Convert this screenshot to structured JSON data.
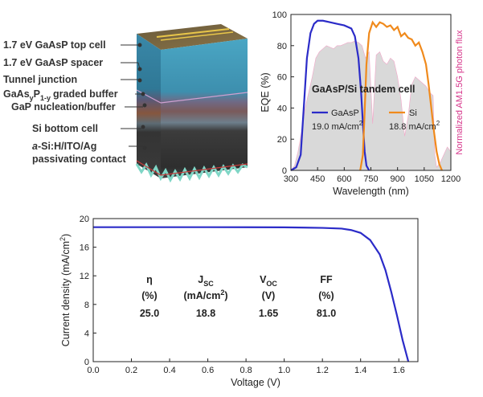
{
  "device": {
    "labels": [
      "1.7 eV GaAsP top cell",
      "1.7 eV GaAsP spacer",
      "Tunnel junction",
      "GaAs",
      "P",
      "graded buffer",
      "GaP nucleation/buffer",
      "Si bottom cell",
      "a",
      "-Si:H/ITO/Ag",
      "passivating contact"
    ],
    "subscripts": [
      "y",
      "1-y"
    ]
  },
  "chart_data": [
    {
      "type": "line",
      "title": "GaAsP/Si tandem cell",
      "xlabel": "Wavelength (nm)",
      "ylabel": "EQE (%)",
      "y2label": "Normalized AM1.5G photon flux",
      "xlim": [
        300,
        1200
      ],
      "ylim": [
        0,
        100
      ],
      "xticks": [
        "300",
        "450",
        "600",
        "750",
        "900",
        "1050",
        "1200"
      ],
      "yticks": [
        "0",
        "20",
        "40",
        "60",
        "80",
        "100"
      ],
      "series": [
        {
          "name": "GaAsP",
          "color": "#2b2bc8",
          "annotation": "19.0 mA/cm",
          "annotation_sup": "2",
          "x": [
            300,
            330,
            355,
            375,
            390,
            410,
            430,
            450,
            480,
            520,
            560,
            600,
            640,
            660,
            680,
            695,
            705,
            715,
            725,
            740
          ],
          "y": [
            0,
            2,
            10,
            45,
            72,
            88,
            94,
            96,
            96,
            95,
            94,
            93,
            91,
            86,
            72,
            50,
            30,
            12,
            3,
            0
          ]
        },
        {
          "name": "Si",
          "color": "#f08a1c",
          "annotation": "18.8 mA/cm",
          "annotation_sup": "2",
          "x": [
            690,
            705,
            715,
            725,
            740,
            760,
            780,
            800,
            820,
            840,
            860,
            880,
            900,
            920,
            940,
            960,
            980,
            1000,
            1020,
            1040,
            1060,
            1075,
            1090,
            1105,
            1120,
            1135,
            1150
          ],
          "y": [
            0,
            10,
            38,
            68,
            88,
            95,
            92,
            95,
            94,
            92,
            93,
            90,
            92,
            86,
            88,
            85,
            84,
            80,
            82,
            76,
            68,
            55,
            40,
            25,
            12,
            4,
            0
          ]
        }
      ],
      "photon_flux": {
        "color": "#d9d9d9",
        "x": [
          300,
          320,
          340,
          360,
          380,
          400,
          420,
          440,
          460,
          480,
          500,
          520,
          540,
          560,
          580,
          600,
          620,
          640,
          660,
          680,
          700,
          720,
          740,
          760,
          780,
          800,
          820,
          840,
          860,
          880,
          900,
          920,
          940,
          960,
          980,
          1000,
          1020,
          1040,
          1060,
          1080,
          1100,
          1110,
          1120,
          1140,
          1160,
          1180,
          1200
        ],
        "y": [
          0,
          3,
          12,
          25,
          40,
          50,
          60,
          72,
          76,
          78,
          80,
          79,
          78,
          80,
          80,
          81,
          82,
          82,
          83,
          82,
          80,
          72,
          76,
          30,
          74,
          76,
          70,
          68,
          72,
          70,
          60,
          45,
          22,
          35,
          55,
          60,
          58,
          56,
          54,
          50,
          48,
          10,
          2,
          5,
          10,
          15,
          12
        ]
      }
    },
    {
      "type": "line",
      "title": "",
      "xlabel": "Voltage (V)",
      "ylabel": "Current density (mA/cm",
      "ylabel_sup": "2",
      "ylabel_end": ")",
      "xlim": [
        0,
        1.7
      ],
      "ylim": [
        0,
        20
      ],
      "xticks": [
        "0.0",
        "0.2",
        "0.4",
        "0.6",
        "0.8",
        "1.0",
        "1.2",
        "1.4",
        "1.6"
      ],
      "yticks": [
        "0",
        "4",
        "8",
        "12",
        "16",
        "20"
      ],
      "series": [
        {
          "name": "J-V",
          "color": "#2b2bc8",
          "x": [
            0.0,
            0.2,
            0.4,
            0.6,
            0.8,
            1.0,
            1.2,
            1.3,
            1.35,
            1.4,
            1.45,
            1.5,
            1.53,
            1.56,
            1.59,
            1.62,
            1.64,
            1.65
          ],
          "y": [
            18.8,
            18.8,
            18.8,
            18.8,
            18.79,
            18.78,
            18.7,
            18.6,
            18.4,
            18.0,
            17.0,
            15.0,
            12.8,
            9.8,
            6.5,
            3.0,
            1.0,
            0.0
          ]
        }
      ],
      "table": {
        "headers": [
          "η",
          "J",
          "V",
          "FF"
        ],
        "header_subs": [
          "",
          "SC",
          "OC",
          ""
        ],
        "units": [
          "(%)",
          "(mA/cm",
          "(V)",
          "(%)"
        ],
        "unit_sup": [
          "",
          "2",
          "",
          ""
        ],
        "unit_end": [
          "",
          ")",
          "",
          ""
        ],
        "values": [
          "25.0",
          "18.8",
          "1.65",
          "81.0"
        ]
      }
    }
  ]
}
